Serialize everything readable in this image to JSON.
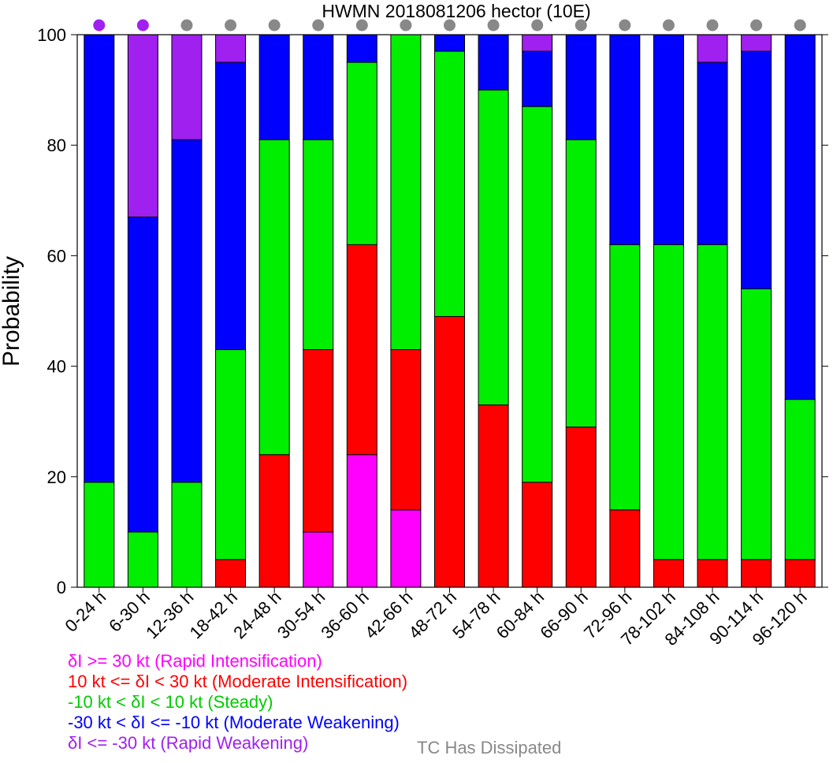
{
  "chart_data": {
    "type": "bar",
    "stacked": true,
    "title": "HWMN 2018081206 hector (10E)",
    "xlabel": "",
    "ylabel": "Probability",
    "ylim": [
      0,
      100
    ],
    "yticks": [
      0,
      20,
      40,
      60,
      80,
      100
    ],
    "grid": false,
    "categories": [
      "0-24 h",
      "6-30 h",
      "12-36 h",
      "18-42 h",
      "24-48 h",
      "30-54 h",
      "36-60 h",
      "42-66 h",
      "48-72 h",
      "54-78 h",
      "60-84 h",
      "66-90 h",
      "72-96 h",
      "78-102 h",
      "84-108 h",
      "90-114 h",
      "96-120 h"
    ],
    "series": [
      {
        "key": "ri",
        "color": "#ff00ff",
        "values": [
          0,
          0,
          0,
          0,
          0,
          10,
          24,
          14,
          0,
          0,
          0,
          0,
          0,
          0,
          0,
          0,
          0
        ]
      },
      {
        "key": "mi",
        "color": "#ff0000",
        "values": [
          0,
          0,
          0,
          5,
          24,
          33,
          38,
          29,
          49,
          33,
          19,
          29,
          14,
          5,
          5,
          5,
          5
        ]
      },
      {
        "key": "steady",
        "color": "#00ee00",
        "values": [
          19,
          10,
          19,
          38,
          57,
          38,
          33,
          57,
          48,
          57,
          68,
          52,
          48,
          57,
          57,
          49,
          29
        ]
      },
      {
        "key": "mw",
        "color": "#0000ff",
        "values": [
          81,
          57,
          62,
          52,
          19,
          19,
          5,
          0,
          3,
          10,
          10,
          19,
          38,
          38,
          33,
          43,
          66
        ]
      },
      {
        "key": "rw",
        "color": "#a020f0",
        "values": [
          0,
          33,
          19,
          5,
          0,
          0,
          0,
          0,
          0,
          0,
          3,
          0,
          0,
          0,
          5,
          3,
          0
        ]
      }
    ],
    "status_dots": [
      "#a020f0",
      "#a020f0",
      "#888888",
      "#888888",
      "#888888",
      "#888888",
      "#888888",
      "#888888",
      "#888888",
      "#888888",
      "#888888",
      "#888888",
      "#888888",
      "#888888",
      "#888888",
      "#888888",
      "#888888"
    ]
  },
  "legend": {
    "ri": {
      "label": "δI >= 30 kt (Rapid Intensification)",
      "color": "#ff00ff"
    },
    "mi": {
      "label": "10 kt <= δI < 30 kt (Moderate Intensification)",
      "color": "#ff0000"
    },
    "steady": {
      "label": "-10 kt < δI < 10 kt (Steady)",
      "color": "#00ee00"
    },
    "mw": {
      "label": "-30 kt < δI <= -10 kt (Moderate Weakening)",
      "color": "#0000ff"
    },
    "rw": {
      "label": "δI <= -30 kt (Rapid Weakening)",
      "color": "#a020f0"
    },
    "dissipated": {
      "label": "TC Has Dissipated",
      "color": "#888888"
    }
  }
}
